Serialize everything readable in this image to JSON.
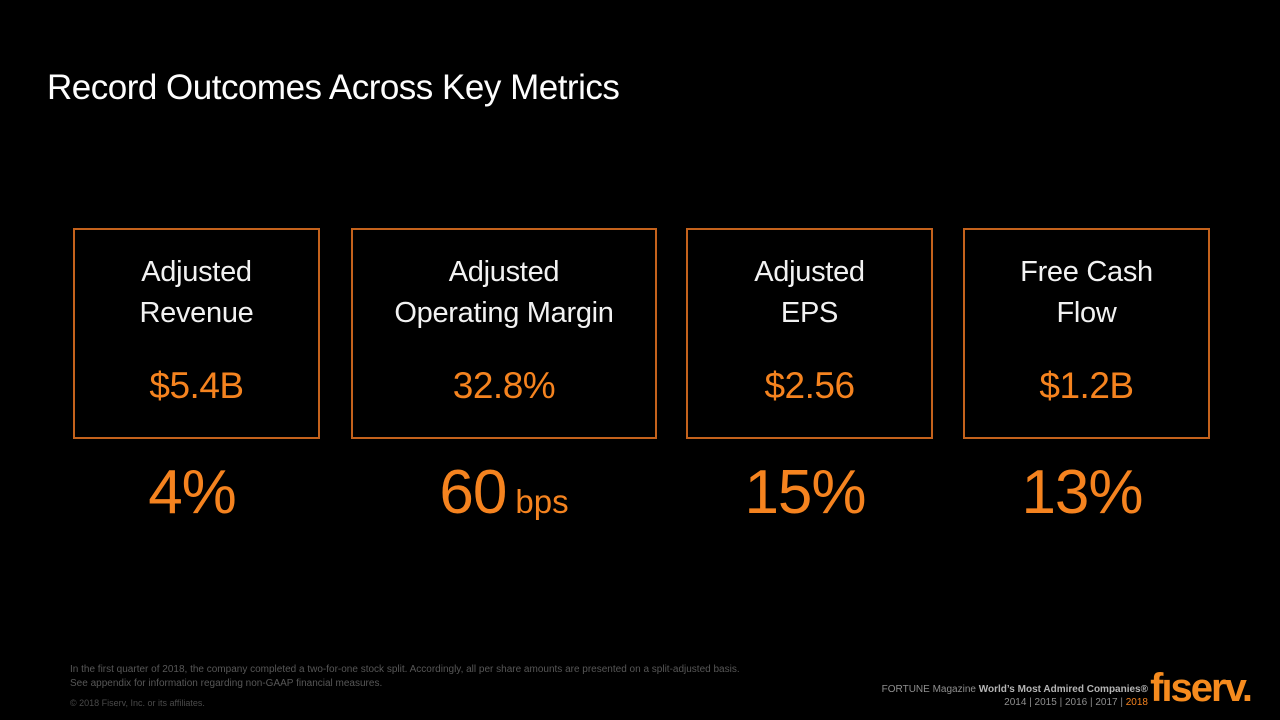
{
  "slide": {
    "title": "Record Outcomes Across Key Metrics",
    "metrics": [
      {
        "label_line1": "Adjusted",
        "label_line2": "Revenue",
        "value": "$5.4B",
        "growth_value": "4%",
        "growth_unit": ""
      },
      {
        "label_line1": "Adjusted",
        "label_line2": "Operating Margin",
        "value": "32.8%",
        "growth_value": "60",
        "growth_unit": "bps"
      },
      {
        "label_line1": "Adjusted",
        "label_line2": "EPS",
        "value": "$2.56",
        "growth_value": "15%",
        "growth_unit": ""
      },
      {
        "label_line1": "Free Cash",
        "label_line2": "Flow",
        "value": "$1.2B",
        "growth_value": "13%",
        "growth_unit": ""
      }
    ],
    "footnotes": {
      "line1": "In the first quarter of 2018, the company completed a two-for-one stock split. Accordingly, all per share amounts are presented on a split-adjusted basis.",
      "line2": "See appendix for information regarding non-GAAP financial measures."
    },
    "copyright": "© 2018 Fiserv, Inc. or its affiliates.",
    "fortune": {
      "prefix": "FORTUNE Magazine ",
      "bold": "World’s Most Admired Companies®",
      "years_prefix": "2014  |  2015  |  2016  |  2017 |  ",
      "year_highlight": "2018"
    },
    "logo_text": "fıserv.",
    "colors": {
      "background": "#000000",
      "accent_orange": "#f5831f",
      "box_border_orange": "#c4621c",
      "title_white": "#fdfdfd",
      "footnote_gray": "#575757"
    }
  }
}
